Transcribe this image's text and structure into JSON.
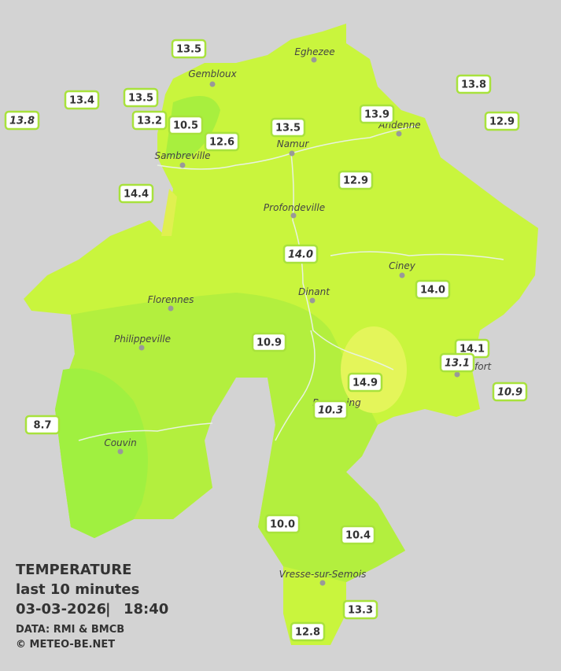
{
  "cities": [
    "Eghezee",
    "Gembloux",
    "Andenne",
    "Namur",
    "Sambreville",
    "Profondeville",
    "Ciney",
    "Dinant",
    "Florennes",
    "Philippeville",
    "Rochefort",
    "Beauraing",
    "Couvin",
    "Vresse-sur-Semois"
  ],
  "stations": [
    "13.5",
    "13.4",
    "13.8",
    "13.5",
    "13.2",
    "10.5",
    "12.6",
    "13.5",
    "13.9",
    "13.8",
    "12.9",
    "14.4",
    "12.9",
    "14.0",
    "14.0",
    "10.9",
    "14.1",
    "13.1",
    "10.9",
    "14.9",
    "10.3",
    "8.7",
    "10.0",
    "10.4",
    "13.3",
    "12.8"
  ],
  "footer": {
    "title": "TEMPERATURE",
    "subtitle": "last 10 minutes",
    "date": "03-03-2026",
    "time": "18:40",
    "source": "DATA: RMI & BMCB",
    "credit": "© METEO-BE.NET"
  }
}
